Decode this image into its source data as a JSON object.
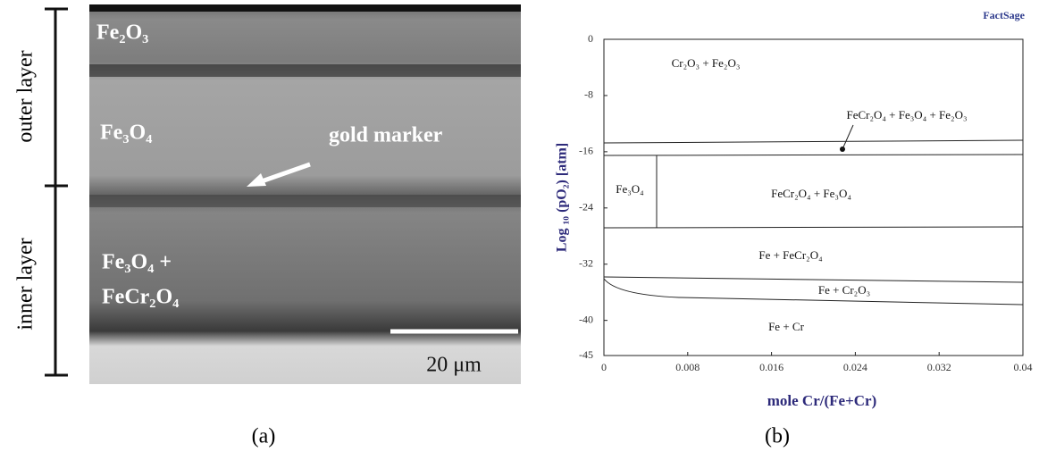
{
  "panel_a": {
    "labels": [
      "Fe₂O₃",
      "Fe₃O₄",
      "gold marker",
      "Fe₃O₄ +",
      "FeCr₂O₄"
    ],
    "layer_labels": [
      "outer layer",
      "inner layer"
    ],
    "scale_bar": "20 μm",
    "caption": "(a)"
  },
  "panel_b": {
    "logo": "FactSage",
    "y_title": "Log ₁₀ (pO₂) [atm]",
    "x_title": "mole Cr/(Fe+Cr)",
    "xlim": [
      0,
      0.04
    ],
    "ylim": [
      -45,
      0
    ],
    "xticks": [
      0,
      0.008,
      0.016,
      0.024,
      0.032,
      0.04
    ],
    "yticks": [
      0,
      -8,
      -16,
      -24,
      -32,
      -40,
      -45
    ],
    "regions": [
      "Cr₂O₃ + Fe₂O₃",
      "FeCr₂O₄ + Fe₃O₄ + Fe₂O₃",
      "Fe₃O₄",
      "FeCr₂O₄ + Fe₃O₄",
      "Fe + FeCr₂O₄",
      "Fe + Cr₂O₃",
      "Fe + Cr"
    ],
    "caption": "(b)"
  }
}
